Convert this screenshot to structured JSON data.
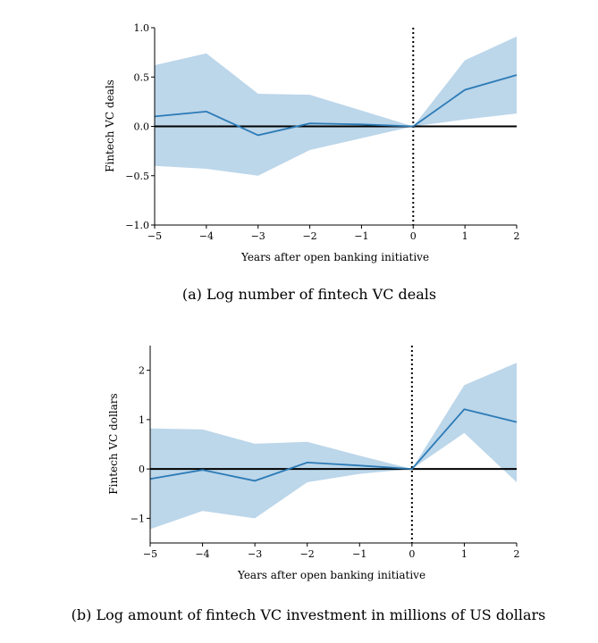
{
  "colors": {
    "band": "#bcd6ea",
    "line": "#2c7bb6",
    "zero": "#000000"
  },
  "chart_data": [
    {
      "type": "line",
      "id": "a",
      "caption": "(a) Log number of fintech VC deals",
      "xlabel": "Years after open banking initiative",
      "ylabel": "Fintech VC deals",
      "xlim": [
        -5,
        2
      ],
      "ylim": [
        -1.0,
        1.0
      ],
      "xticks": [
        -5,
        -4,
        -3,
        -2,
        -1,
        0,
        1,
        2
      ],
      "xtick_labels": [
        "−5",
        "−4",
        "−3",
        "−2",
        "−1",
        "0",
        "1",
        "2"
      ],
      "yticks": [
        -1.0,
        -0.5,
        0.0,
        0.5,
        1.0
      ],
      "ytick_labels": [
        "−1.0",
        "−0.5",
        "0.0",
        "0.5",
        "1.0"
      ],
      "x": [
        -5,
        -4,
        -3,
        -2,
        -1,
        0,
        1,
        2
      ],
      "estimate": [
        0.1,
        0.15,
        -0.09,
        0.03,
        0.02,
        0.0,
        0.37,
        0.52
      ],
      "upper": [
        0.62,
        0.74,
        0.33,
        0.32,
        0.16,
        0.0,
        0.67,
        0.91
      ],
      "lower": [
        -0.4,
        -0.43,
        -0.5,
        -0.24,
        -0.12,
        0.0,
        0.07,
        0.13
      ],
      "reference_line_y": 0,
      "event_line_x": 0
    },
    {
      "type": "line",
      "id": "b",
      "caption": "(b) Log amount of fintech VC investment in millions of US dollars",
      "xlabel": "Years after open banking initiative",
      "ylabel": "Fintech VC dollars",
      "xlim": [
        -5,
        2
      ],
      "ylim": [
        -1.5,
        2.5
      ],
      "xticks": [
        -5,
        -4,
        -3,
        -2,
        -1,
        0,
        1,
        2
      ],
      "xtick_labels": [
        "−5",
        "−4",
        "−3",
        "−2",
        "−1",
        "0",
        "1",
        "2"
      ],
      "yticks": [
        -1,
        0,
        1,
        2
      ],
      "ytick_labels": [
        "−1",
        "0",
        "1",
        "2"
      ],
      "x": [
        -5,
        -4,
        -3,
        -2,
        -1,
        0,
        1,
        2
      ],
      "estimate": [
        -0.2,
        -0.02,
        -0.24,
        0.13,
        0.07,
        0.0,
        1.21,
        0.95
      ],
      "upper": [
        0.82,
        0.8,
        0.51,
        0.55,
        0.27,
        0.0,
        1.7,
        2.15
      ],
      "lower": [
        -1.22,
        -0.85,
        -1.0,
        -0.27,
        -0.1,
        0.0,
        0.73,
        -0.27
      ],
      "reference_line_y": 0,
      "event_line_x": 0
    }
  ]
}
